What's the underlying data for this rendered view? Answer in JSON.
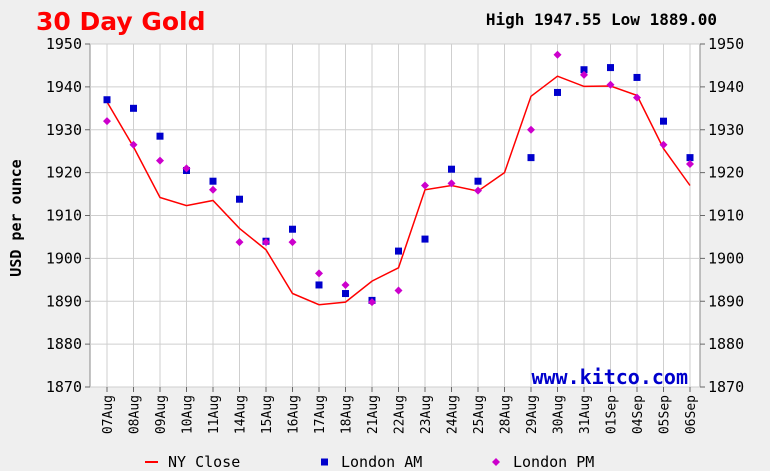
{
  "chart_data": {
    "type": "line",
    "title": "30 Day Gold",
    "stats": "High 1947.55 Low 1889.00",
    "ylabel": "USD per ounce",
    "xlabel": "",
    "watermark": "www.kitco.com",
    "ylim": [
      1870,
      1950
    ],
    "yticks": [
      1870,
      1880,
      1890,
      1900,
      1910,
      1920,
      1930,
      1940,
      1950
    ],
    "grid": true,
    "legend_position": "bottom",
    "categories": [
      "07Aug",
      "08Aug",
      "09Aug",
      "10Aug",
      "11Aug",
      "14Aug",
      "15Aug",
      "16Aug",
      "17Aug",
      "18Aug",
      "21Aug",
      "22Aug",
      "23Aug",
      "24Aug",
      "25Aug",
      "28Aug",
      "29Aug",
      "30Aug",
      "31Aug",
      "01Sep",
      "04Sep",
      "05Sep",
      "06Sep"
    ],
    "series": [
      {
        "name": "NY Close",
        "style": "line",
        "color": "#ff0000",
        "values": [
          1936.5,
          1926.0,
          1914.2,
          1912.3,
          1913.5,
          1907.0,
          1902.0,
          1891.8,
          1889.2,
          1889.8,
          1894.7,
          1897.8,
          1916.0,
          1917.0,
          1915.7,
          1920.0,
          1937.8,
          1942.5,
          1940.1,
          1940.2,
          1938.0,
          1925.6,
          1917.0
        ]
      },
      {
        "name": "London AM",
        "style": "square",
        "color": "#0000cc",
        "values": [
          1937.0,
          1935.0,
          1928.5,
          1920.5,
          1918.0,
          1913.8,
          1904.0,
          1906.8,
          1893.8,
          1891.8,
          1890.2,
          1901.7,
          1904.5,
          1920.8,
          1918.0,
          null,
          1923.5,
          1938.7,
          1944.0,
          1944.5,
          1942.2,
          1932.0,
          1923.5
        ]
      },
      {
        "name": "London PM",
        "style": "diamond",
        "color": "#cc00cc",
        "values": [
          1932.0,
          1926.5,
          1922.8,
          1921.0,
          1916.0,
          1903.8,
          1903.8,
          1903.8,
          1896.5,
          1893.8,
          1889.8,
          1892.5,
          1917.0,
          1917.5,
          1915.8,
          null,
          1930.0,
          1947.5,
          1942.8,
          1940.5,
          1937.5,
          1926.5,
          1922.0
        ]
      }
    ]
  },
  "colors": {
    "background": "#efefef",
    "plot_area": "#ffffff",
    "grid": "#cfcfcf",
    "title": "#ff0000",
    "watermark": "#0000cc"
  }
}
